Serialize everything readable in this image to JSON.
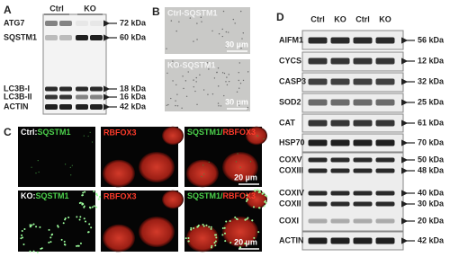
{
  "panel_a": {
    "label": "A",
    "columns": [
      "Ctrl",
      "KO"
    ],
    "rows": [
      {
        "name": "ATG7",
        "size": "72 kDa"
      },
      {
        "name": "SQSTM1",
        "size": "60 kDa"
      },
      {
        "name": "LC3B-I",
        "size": "18 kDa"
      },
      {
        "name": "LC3B-II",
        "size": "16 kDa"
      },
      {
        "name": "ACTIN",
        "size": "42 kDa"
      }
    ]
  },
  "panel_b": {
    "label": "B",
    "images": [
      {
        "caption": "Ctrl-SQSTM1",
        "scale": "30 µm"
      },
      {
        "caption": "KO-SQSTM1",
        "scale": "30 µm"
      }
    ]
  },
  "panel_c": {
    "label": "C",
    "rows": [
      {
        "prefix": "Ctrl:",
        "marker": "SQSTM1",
        "neuron": "RBFOX3",
        "merge_green": "SQSTM1/",
        "merge_red": "RBFOX3",
        "scale": "20 µm"
      },
      {
        "prefix": "KO:",
        "marker": "SQSTM1",
        "neuron": "RBFOX3",
        "merge_green": "SQSTM1/",
        "merge_red": "RBFOX3",
        "scale": "20 µm"
      }
    ]
  },
  "panel_d": {
    "label": "D",
    "columns": [
      "Ctrl",
      "KO",
      "Ctrl",
      "KO"
    ],
    "rows": [
      {
        "name": "AIFM1",
        "size": "56 kDa"
      },
      {
        "name": "CYCS",
        "size": "12 kDa"
      },
      {
        "name": "CASP3",
        "size": "32 kDa"
      },
      {
        "name": "SOD2",
        "size": "25 kDa"
      },
      {
        "name": "CAT",
        "size": "61 kDa"
      },
      {
        "name": "HSP70",
        "size": "70 kDa"
      },
      {
        "name": "COXV",
        "size": "50 kDa"
      },
      {
        "name": "COXIII",
        "size": "48 kDa"
      },
      {
        "name": "COXIV",
        "size": "40 kDa"
      },
      {
        "name": "COXII",
        "size": "30 kDa"
      },
      {
        "name": "COXI",
        "size": "20 kDa"
      },
      {
        "name": "ACTIN",
        "size": "42 kDa"
      }
    ]
  }
}
